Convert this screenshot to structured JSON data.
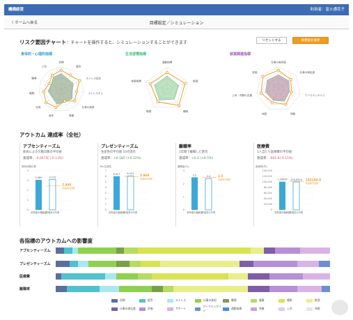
{
  "header": {
    "brand": "機構経営",
    "user": "利用者：富士通花子"
  },
  "nav": {
    "back": "〈  ホームへ戻る",
    "title": "目標設定／シミュレーション"
  },
  "risk": {
    "title": "リスク要因チャート",
    "subtitle": "：チャートを操作すると、シミュレーションすることができます",
    "reset_label": "リセットする",
    "save_label": "目標値を保存"
  },
  "radars": [
    {
      "title": "身体的・心理的指標",
      "color": "#2a9fd6",
      "axes": [
        "初期",
        "疲労",
        "ストレス反応",
        "ストレスチェック",
        "仕事の負担",
        "健康",
        "身体",
        "自覚",
        "睡眠",
        "職場",
        "上司"
      ]
    },
    {
      "title": "生活習慣指標",
      "color": "#3cb878",
      "axes": [
        "運動指標",
        "飲酒",
        "睡眠",
        "喫煙",
        "食事指標"
      ]
    },
    {
      "title": "就業関連指標",
      "color": "#9b59b6",
      "axes": [
        "仕事の負担感",
        "仕事の満足度",
        "ワークエンゲイジ",
        "残業",
        "休暇",
        "上司・同僚の支援",
        "評価"
      ]
    }
  ],
  "outcome": {
    "title": "アウトカム 達成率（全社）",
    "kpis": [
      {
        "title": "アブセンティーズム",
        "desc": "疾病による欠勤日数の平均値",
        "gap_label": "達成率：",
        "gap": "-0.067日 (-0.13%)",
        "gap_sign": "neg",
        "ylabel": "病気休暇日数",
        "v1": "3.069",
        "v2": "3.112",
        "target": "2.445",
        "target_sub": "年度末の目標",
        "x1": "前年度の実績値",
        "x2": "年度末の予測"
      },
      {
        "title": "プレゼンティーズム",
        "desc": "生産性の平均値 10点満点",
        "gap_label": "達成率：",
        "gap": "+0.185 (+0.12%)",
        "gap_sign": "pos",
        "ylabel": "MIU生産性",
        "v1": "6.027",
        "v2": "6.101",
        "target": "5.968",
        "target_sub": "年度末の目標",
        "x1": "前年度の実績値",
        "x2": "年度末の予測"
      },
      {
        "title": "離職率",
        "desc": "1年間で離職した割合",
        "gap_label": "達成率：",
        "gap": "+0.1 (+0.5%)",
        "gap_sign": "pos",
        "ylabel": "離職者(%)",
        "v1": "2.5",
        "v2": "2.4",
        "target": "2.5",
        "target_sub": "年度末の目標",
        "x1": "前年度の実績値",
        "x2": "年度末の予測"
      },
      {
        "title": "医療費",
        "desc": "1人当たり医療費の平均値",
        "gap_label": "達成率：",
        "gap": "-605.6(-0.15%)",
        "gap_sign": "neg",
        "ylabel": "医療費(円)",
        "v1": "1,00934",
        "v2": "100,0254",
        "target": "102180.4",
        "target_sub": "年度末の目標",
        "x1": "前年度の実績値",
        "x2": "年度末の予測"
      }
    ],
    "ticks": [
      [
        "4",
        "3",
        "2",
        "1",
        "0"
      ],
      [
        "7",
        "6",
        "5",
        "4",
        "3",
        "2",
        "1",
        "0"
      ],
      [
        "3",
        "2",
        "1",
        "0"
      ],
      [
        "140,000",
        "120,000",
        "100,000",
        "80,000",
        "60,000",
        "40,000",
        "20,000",
        "0"
      ]
    ]
  },
  "impact": {
    "title": "各指標のアウトカムへの影響度",
    "rows": [
      {
        "label": "アブセンティーズム",
        "segments": [
          {
            "c": 0,
            "w": 3
          },
          {
            "c": 1,
            "w": 3
          },
          {
            "c": 2,
            "w": 2
          },
          {
            "c": 3,
            "w": 14
          },
          {
            "c": 4,
            "w": 3
          },
          {
            "c": 5,
            "w": 5
          },
          {
            "c": 6,
            "w": 41
          },
          {
            "c": 7,
            "w": 5
          },
          {
            "c": 8,
            "w": 4
          },
          {
            "c": 9,
            "w": 9
          },
          {
            "c": 10,
            "w": 11
          }
        ]
      },
      {
        "label": "プレゼンティーズム",
        "segments": [
          {
            "c": 0,
            "w": 5
          },
          {
            "c": 1,
            "w": 3
          },
          {
            "c": 2,
            "w": 4
          },
          {
            "c": 3,
            "w": 10
          },
          {
            "c": 4,
            "w": 5
          },
          {
            "c": 5,
            "w": 4
          },
          {
            "c": 6,
            "w": 7
          },
          {
            "c": 7,
            "w": 29
          },
          {
            "c": 8,
            "w": 5
          },
          {
            "c": 9,
            "w": 16
          },
          {
            "c": 10,
            "w": 8
          },
          {
            "c": 11,
            "w": 4
          }
        ]
      },
      {
        "label": "医療費",
        "segments": [
          {
            "c": 0,
            "w": 2
          },
          {
            "c": 1,
            "w": 16
          },
          {
            "c": 2,
            "w": 4
          },
          {
            "c": 3,
            "w": 8
          },
          {
            "c": 5,
            "w": 5
          },
          {
            "c": 6,
            "w": 28
          },
          {
            "c": 7,
            "w": 7
          },
          {
            "c": 8,
            "w": 8
          },
          {
            "c": 9,
            "w": 12
          },
          {
            "c": 10,
            "w": 10
          }
        ]
      },
      {
        "label": "離職率",
        "segments": [
          {
            "c": 0,
            "w": 4
          },
          {
            "c": 1,
            "w": 12
          },
          {
            "c": 2,
            "w": 7
          },
          {
            "c": 3,
            "w": 12
          },
          {
            "c": 4,
            "w": 4
          },
          {
            "c": 5,
            "w": 4
          },
          {
            "c": 7,
            "w": 27
          },
          {
            "c": 8,
            "w": 8
          },
          {
            "c": 9,
            "w": 10
          },
          {
            "c": 10,
            "w": 9
          },
          {
            "c": 11,
            "w": 3
          }
        ]
      }
    ],
    "legend": [
      {
        "label": "初期",
        "color": "#5b6f9e"
      },
      {
        "label": "疲労",
        "color": "#4fc2cf"
      },
      {
        "label": "ストレス",
        "color": "#a9e8ef"
      },
      {
        "label": "仕事の負担",
        "color": "#8fd14f"
      },
      {
        "label": "職場",
        "color": "#7a9f4a"
      },
      {
        "label": "健康",
        "color": "#b7db63"
      },
      {
        "label": "睡眠",
        "color": "#d8e354"
      },
      {
        "label": "飲酒",
        "color": "#e8ef8a"
      },
      {
        "label": "仕事の満足度",
        "color": "#7e5ea8"
      },
      {
        "label": "評価",
        "color": "#b68fd6"
      },
      {
        "label": "サポート",
        "color": "#d9b3e6"
      },
      {
        "label": "ワークエンゲイジ",
        "color": "#6e8ed0"
      },
      {
        "label": "運動指標",
        "color": "#3f8fe0"
      },
      {
        "label": "残業",
        "color": "#c8a3d9"
      },
      {
        "label": "上司",
        "color": "#e3c9ee"
      },
      {
        "label": "休暇",
        "color": "#f0def4"
      }
    ]
  }
}
